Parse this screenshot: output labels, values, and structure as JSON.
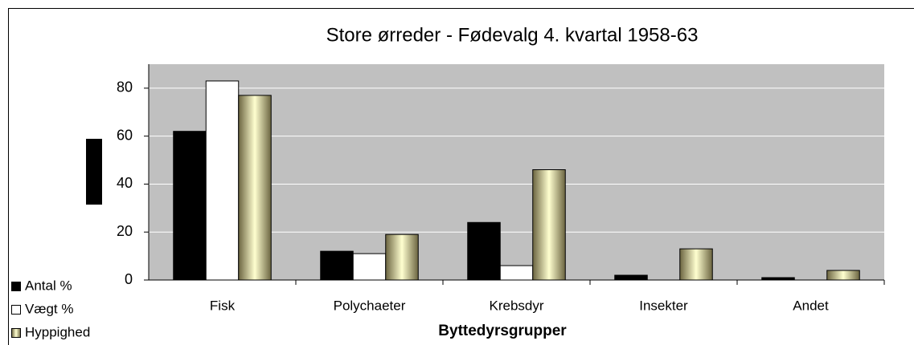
{
  "chart_data": {
    "type": "bar",
    "title": "Store ørreder - Fødevalg 4. kvartal 1958-63",
    "x_label": "Byttedyrsgrupper",
    "categories": [
      "Fisk",
      "Polychaeter",
      "Krebsdyr",
      "Insekter",
      "Andet"
    ],
    "series": [
      {
        "name": "Antal %",
        "color": "#000000",
        "values": [
          62,
          12,
          24,
          2,
          1
        ]
      },
      {
        "name": "Vægt %",
        "color": "#ffffff",
        "values": [
          83,
          11,
          6,
          0,
          0
        ]
      },
      {
        "name": "Hyppighed",
        "color": "#ffffd0",
        "values": [
          77,
          19,
          46,
          13,
          4
        ]
      }
    ],
    "ylim": [
      0,
      90
    ],
    "yticks": [
      0,
      20,
      40,
      60,
      80
    ],
    "grid": true,
    "legend": "bottom-left"
  }
}
